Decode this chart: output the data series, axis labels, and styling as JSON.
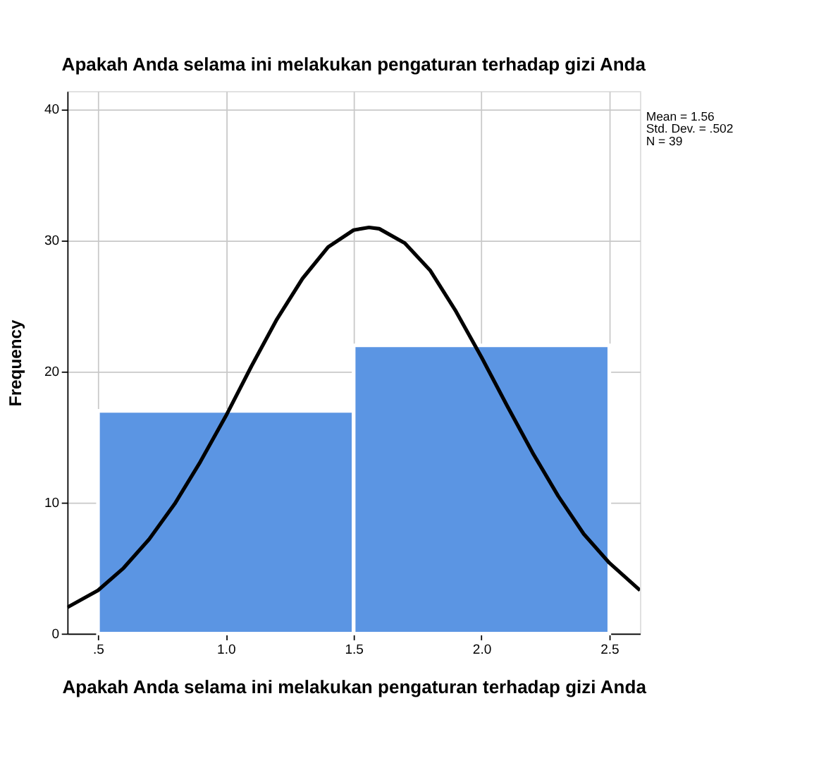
{
  "chart_data": {
    "type": "histogram",
    "title": "Apakah Anda selama ini melakukan pengaturan terhadap gizi Anda",
    "xlabel": "Apakah Anda selama ini melakukan pengaturan terhadap gizi Anda",
    "ylabel": "Frequency",
    "bins": [
      0.5,
      1.5,
      2.5
    ],
    "values": [
      17,
      22
    ],
    "color": "#5b95e3",
    "series": [
      {
        "type": "line",
        "color": "#000000",
        "x": [
          0.38,
          0.5,
          0.6,
          0.7,
          0.8,
          0.9,
          1.0,
          1.1,
          1.2,
          1.3,
          1.4,
          1.5,
          1.56,
          1.6,
          1.7,
          1.8,
          1.9,
          2.0,
          2.1,
          2.2,
          2.3,
          2.4,
          2.5,
          2.62
        ],
        "values": [
          2.0,
          3.3,
          5.0,
          7.2,
          9.9,
          13.1,
          16.6,
          20.4,
          24.0,
          27.1,
          29.5,
          30.8,
          31.0,
          30.9,
          29.8,
          27.7,
          24.6,
          21.1,
          17.4,
          13.8,
          10.5,
          7.6,
          5.4,
          3.3
        ]
      }
    ],
    "xlim": [
      0.38,
      2.62
    ],
    "ylim": [
      0,
      41.4
    ],
    "xticks": [
      {
        "value": 0.5,
        "label": ".5"
      },
      {
        "value": 1.0,
        "label": "1.0"
      },
      {
        "value": 1.5,
        "label": "1.5"
      },
      {
        "value": 2.0,
        "label": "2.0"
      },
      {
        "value": 2.5,
        "label": "2.5"
      }
    ],
    "yticks": [
      0,
      10,
      20,
      30,
      40
    ],
    "grid": true,
    "annotations": [
      "Mean = 1.56",
      "Std. Dev. = .502",
      "N = 39"
    ]
  }
}
